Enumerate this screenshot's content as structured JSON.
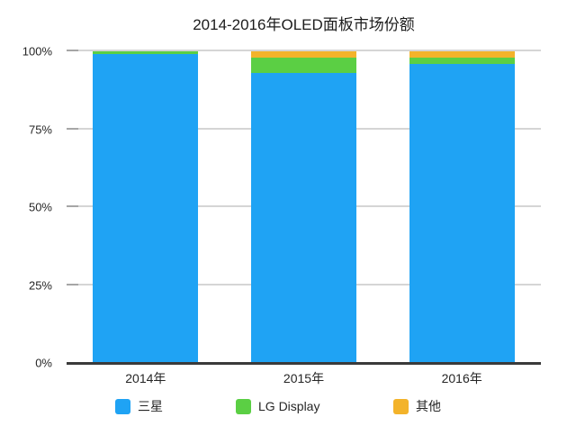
{
  "chart_data": {
    "type": "bar",
    "stacked": true,
    "units": "percent",
    "title": "2014-2016年OLED面板市场份额",
    "categories": [
      "2014年",
      "2015年",
      "2016年"
    ],
    "series": [
      {
        "name": "三星",
        "color": "#1FA3F4",
        "values": [
          99,
          93,
          96
        ]
      },
      {
        "name": "LG Display",
        "color": "#5BCF44",
        "values": [
          1,
          5,
          2
        ]
      },
      {
        "name": "其他",
        "color": "#F3B32A",
        "values": [
          0,
          2,
          2
        ]
      }
    ],
    "ylim": [
      0,
      100
    ],
    "yticks": [
      0,
      25,
      50,
      75,
      100
    ],
    "ytick_labels": [
      "0%",
      "25%",
      "50%",
      "75%",
      "100%"
    ],
    "grid": true,
    "legend_position": "bottom",
    "axis_color": "#3A3A3A",
    "gridline_color": "#D5D5D5",
    "background_color": "#FFFFFF"
  }
}
